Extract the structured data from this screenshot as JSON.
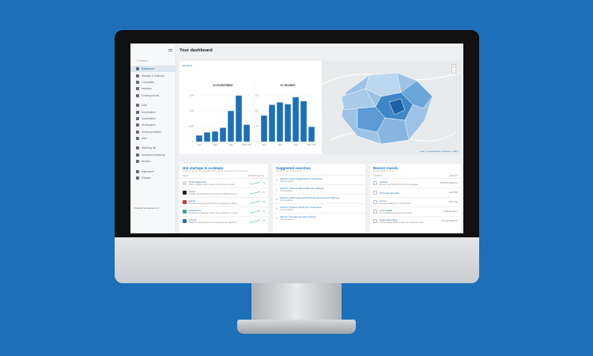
{
  "header": {
    "title": "Your dashboard"
  },
  "sidebar": {
    "search_placeholder": "Search...",
    "items": [
      "Dashboard",
      "Startups & Scaleups",
      "Corporates",
      "Investors",
      "Funding rounds",
      "Exits",
      "Accelerators",
      "Accelerators",
      "Workspaces",
      "Service providers",
      "More",
      "Watching list",
      "Investment Matching",
      "Reclaim",
      "Impressum",
      "Partners"
    ],
    "powered_by": "Powered by dealroom.co"
  },
  "filter_label": "MUNICH",
  "colors": {
    "accent": "#1d6fb8",
    "background": "#1d6fb8"
  },
  "chart_data": [
    {
      "type": "bar",
      "title": "VC INVESTMENT",
      "categories": [
        "2018",
        "2019",
        "2020",
        "2021",
        "2022",
        "2023",
        "2024 (YTD)"
      ],
      "tick_labels": [
        "2018",
        "2020",
        "2022",
        "2024 (YTD)"
      ],
      "values": [
        0.2,
        0.3,
        0.33,
        0.45,
        1.0,
        1.5,
        0.55
      ],
      "yticks": [
        "0",
        "500M",
        "1.0B",
        "1.5B"
      ],
      "ylim": [
        0,
        1.6
      ]
    },
    {
      "type": "bar",
      "title": "VC ROUNDS",
      "categories": [
        "2018",
        "2019",
        "2020",
        "2021",
        "2022",
        "2023",
        "2024 (YTD)"
      ],
      "tick_labels": [
        "2018",
        "2020",
        "2022",
        "2024 (YTD)"
      ],
      "values": [
        85,
        120,
        128,
        122,
        145,
        132,
        48
      ],
      "yticks": [
        "0",
        "50",
        "100",
        "150"
      ],
      "ylim": [
        0,
        160
      ]
    }
  ],
  "map": {
    "attribution": "Leaflet | © OpenStreetMap, contributors © CARTO"
  },
  "hot": {
    "title": "Hot startups & scaleups",
    "subtitle": "Local companies, founded after 2015, growth signal within the last days",
    "col_name": "NAME",
    "col_signal": "GROWTH SIGNAL",
    "rows": [
      {
        "name": "Smart Reporting",
        "desc": "Offers a digital health solution for structured medical",
        "score": "72",
        "color": "#ddd"
      },
      {
        "name": "Ulixes",
        "desc": "Designs virtual festivals and events to establish genera",
        "score": "70",
        "color": "#222"
      },
      {
        "name": "Fibrify",
        "desc": "Enables scheduling and resource management softwar",
        "score": "69",
        "color": "#d33"
      },
      {
        "name": "DataGuard",
        "desc": "Develops and provides data privacy solutions for compa",
        "score": "66",
        "color": "#3a9"
      },
      {
        "name": "Foxtrot",
        "desc": "Supports entrepreneurs and companies with digital sol",
        "score": "65",
        "color": "#1d6fb8"
      }
    ]
  },
  "searches": {
    "title": "Suggested searches",
    "subtitle": "Based on your recent activity",
    "rows": [
      {
        "name": "Munich | Most funded fintech companies",
        "count": "150 companies"
      },
      {
        "name": "Munich | Most funded health tech startups",
        "count": "78 companies"
      },
      {
        "name": "Munich | Real estate and financial services tech startups",
        "count": "64 companies"
      },
      {
        "name": "Munich | Fastest growing AI companies",
        "count": "120 companies"
      },
      {
        "name": "Munich | Female founded startups",
        "count": "128 companies"
      }
    ]
  },
  "rounds": {
    "title": "Recent rounds",
    "subtitle": "Recent funding rounds",
    "col_name": "COMPANY",
    "col_amount": "AMOUNT",
    "rows": [
      {
        "name": "Helsing",
        "desc": "Designs and builds AI and defense software",
        "amount": "€484.8M SERIES C"
      },
      {
        "name": "iOmx Therapeutics",
        "desc": "",
        "amount": "EUR 65M"
      },
      {
        "name": "Konux",
        "desc": "Develops software for infrastructure",
        "amount": "EUR 20M"
      },
      {
        "name": "Lean Health",
        "desc": "Lean healthcare and care technology",
        "amount": "€11M SERIES A"
      },
      {
        "name": "Smart Reporting",
        "desc": "Offers a digital health solution for structured medic",
        "amount": "€12.5M SERIES B"
      }
    ]
  }
}
